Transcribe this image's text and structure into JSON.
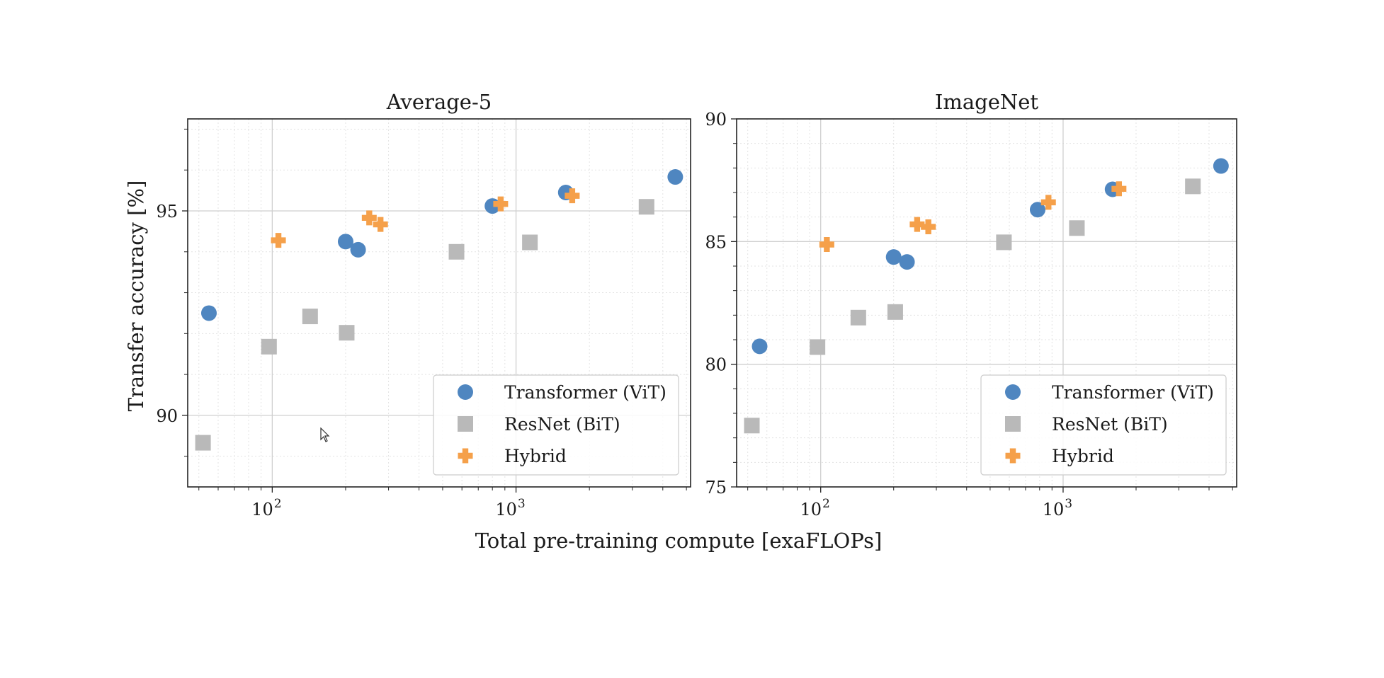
{
  "figure": {
    "xlabel": "Total pre-training compute [exaFLOPs]",
    "ylabel": "Transfer accuracy [%]"
  },
  "colors": {
    "Transformer (ViT)": "#4f86c0",
    "ResNet (BiT)": "#b9b9b9",
    "Hybrid": "#f5a04a"
  },
  "chart_data": [
    {
      "type": "scatter",
      "title": "Average-5",
      "xscale": "log",
      "xlim": [
        45,
        5200
      ],
      "ylim": [
        88.25,
        97.25
      ],
      "xticks": [
        {
          "value": 100,
          "base": "10",
          "exp": "2"
        },
        {
          "value": 1000,
          "base": "10",
          "exp": "3"
        }
      ],
      "yticks": [
        90,
        95
      ],
      "grid": true,
      "legend_position": "bottom-right",
      "series": [
        {
          "name": "Transformer (ViT)",
          "marker": "circle",
          "points": [
            [
              55,
              92.5
            ],
            [
              200,
              94.25
            ],
            [
              225,
              94.05
            ],
            [
              800,
              95.12
            ],
            [
              1600,
              95.45
            ],
            [
              4500,
              95.83
            ]
          ]
        },
        {
          "name": "ResNet (BiT)",
          "marker": "square",
          "points": [
            [
              52,
              89.33
            ],
            [
              97,
              91.68
            ],
            [
              143,
              92.42
            ],
            [
              202,
              92.02
            ],
            [
              570,
              94.0
            ],
            [
              1140,
              94.23
            ],
            [
              3430,
              95.1
            ]
          ]
        },
        {
          "name": "Hybrid",
          "marker": "plus",
          "points": [
            [
              106,
              94.28
            ],
            [
              250,
              94.83
            ],
            [
              278,
              94.67
            ],
            [
              865,
              95.17
            ],
            [
              1700,
              95.37
            ]
          ]
        }
      ]
    },
    {
      "type": "scatter",
      "title": "ImageNet",
      "xscale": "log",
      "xlim": [
        45,
        5200
      ],
      "ylim": [
        75,
        90
      ],
      "xticks": [
        {
          "value": 100,
          "base": "10",
          "exp": "2"
        },
        {
          "value": 1000,
          "base": "10",
          "exp": "3"
        }
      ],
      "yticks": [
        75,
        80,
        85,
        90
      ],
      "grid": true,
      "legend_position": "bottom-right",
      "series": [
        {
          "name": "Transformer (ViT)",
          "marker": "circle",
          "points": [
            [
              56,
              80.73
            ],
            [
              200,
              84.37
            ],
            [
              227,
              84.17
            ],
            [
              785,
              86.3
            ],
            [
              1600,
              87.13
            ],
            [
              4480,
              88.08
            ]
          ]
        },
        {
          "name": "ResNet (BiT)",
          "marker": "square",
          "points": [
            [
              52,
              77.5
            ],
            [
              97,
              80.7
            ],
            [
              143,
              81.9
            ],
            [
              203,
              82.13
            ],
            [
              570,
              84.97
            ],
            [
              1140,
              85.55
            ],
            [
              3430,
              87.25
            ]
          ]
        },
        {
          "name": "Hybrid",
          "marker": "plus",
          "points": [
            [
              106,
              84.88
            ],
            [
              250,
              85.7
            ],
            [
              278,
              85.6
            ],
            [
              870,
              86.6
            ],
            [
              1700,
              87.15
            ]
          ]
        }
      ]
    }
  ]
}
